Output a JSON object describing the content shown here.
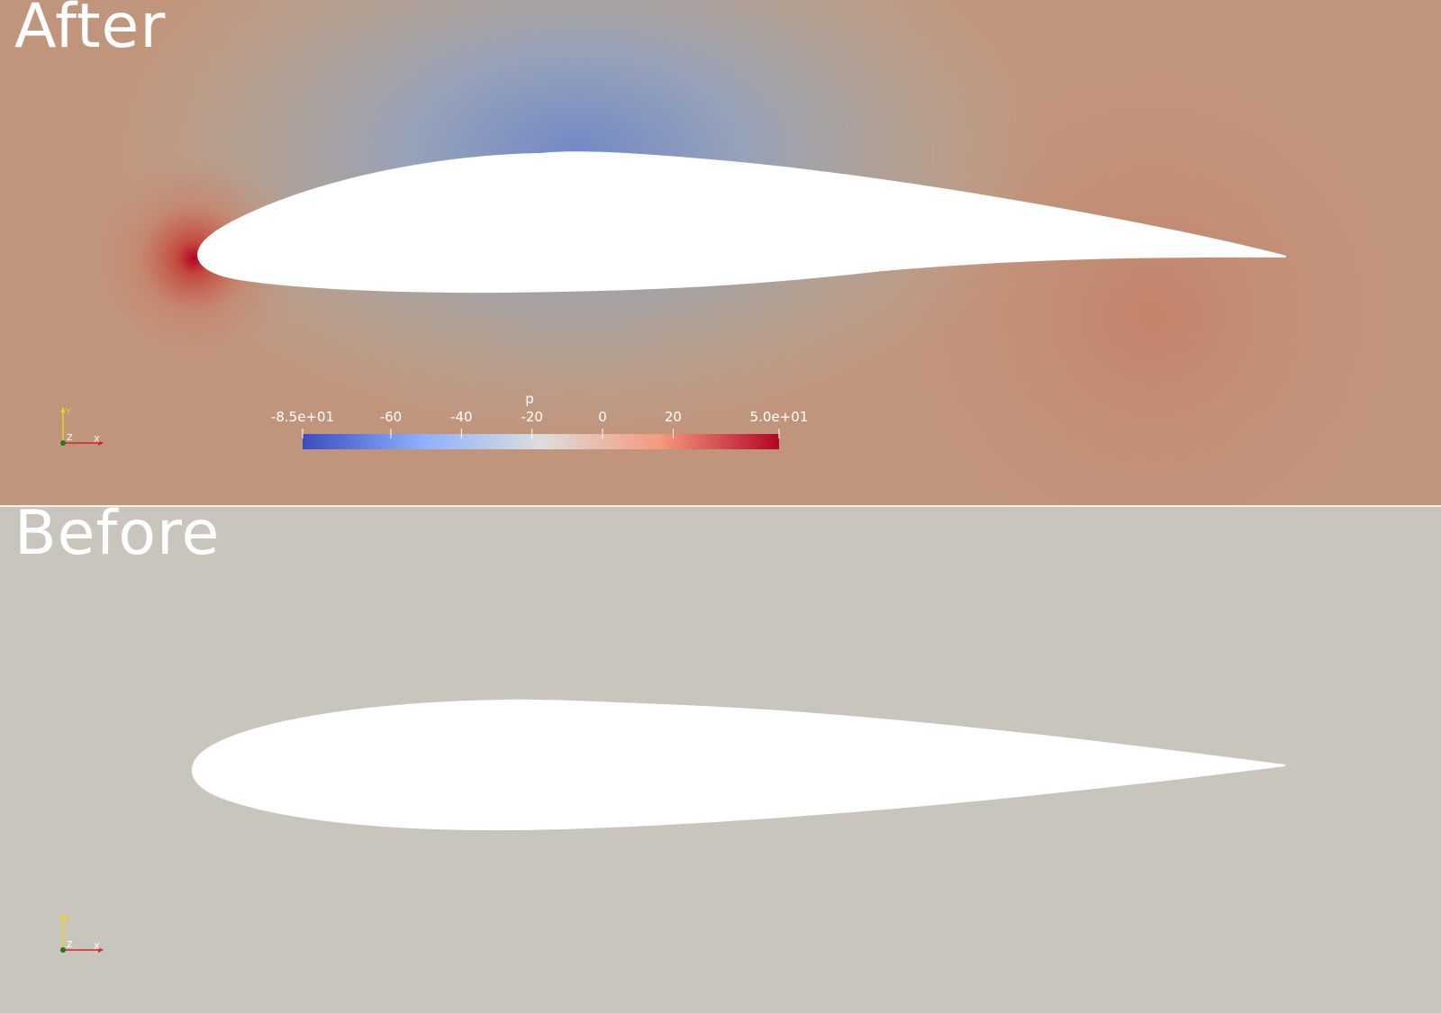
{
  "views": {
    "after": {
      "title": "After"
    },
    "before": {
      "title": "Before"
    }
  },
  "scalar_bar": {
    "title": "p",
    "colormap": [
      "#3b4cc0",
      "#8db0fe",
      "#dddddd",
      "#f49a7b",
      "#b40426"
    ],
    "ticks": [
      {
        "value": -85,
        "label": "-8.5e+01"
      },
      {
        "value": -60,
        "label": "-60"
      },
      {
        "value": -40,
        "label": "-40"
      },
      {
        "value": -20,
        "label": "-20"
      },
      {
        "value": 0,
        "label": "0"
      },
      {
        "value": 20,
        "label": "20"
      },
      {
        "value": 50,
        "label": "5.0e+01"
      }
    ]
  },
  "orientation_axes": {
    "x": "X",
    "y": "Y",
    "z": "Z"
  },
  "colors": {
    "after_background": "#c1957c",
    "before_background": "#c7c5bc",
    "airfoil": "#ffffff",
    "axis_x": "#d62728",
    "axis_y": "#e6d21f",
    "axis_origin": "#1f7a1f"
  }
}
